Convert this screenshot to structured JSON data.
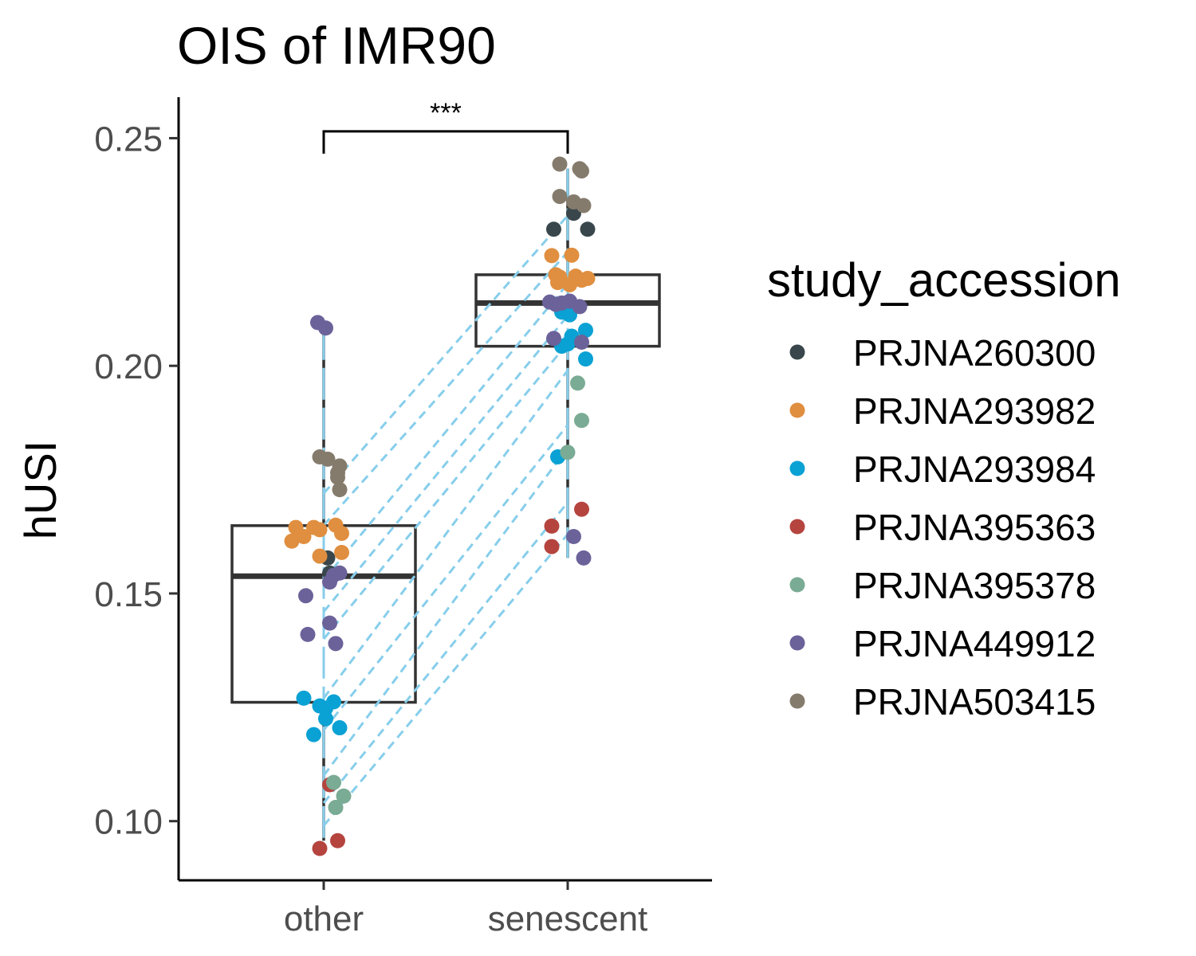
{
  "chart_data": {
    "type": "box",
    "title": "OIS of IMR90",
    "xlabel": "",
    "ylabel": "hUSI",
    "categories": [
      "other",
      "senescent"
    ],
    "ylim": [
      0.087,
      0.259
    ],
    "yticks": [
      {
        "value": 0.1,
        "label": "0.10"
      },
      {
        "value": 0.15,
        "label": "0.15"
      },
      {
        "value": 0.2,
        "label": "0.20"
      },
      {
        "value": 0.25,
        "label": "0.25"
      }
    ],
    "significance": {
      "label": "***",
      "between": [
        "other",
        "senescent"
      ],
      "y": 0.2515
    },
    "boxes": [
      {
        "category": "other",
        "q1": 0.1261,
        "median": 0.1538,
        "q3": 0.1649,
        "whisker_low": 0.0957,
        "whisker_high": 0.2083
      },
      {
        "category": "senescent",
        "q1": 0.2043,
        "median": 0.2138,
        "q3": 0.22,
        "whisker_low": 0.1578,
        "whisker_high": 0.2433
      }
    ],
    "legend": {
      "title": "study_accession",
      "position": "right",
      "entries": [
        {
          "name": "PRJNA260300",
          "color": "#39474c"
        },
        {
          "name": "PRJNA293982",
          "color": "#e08e3f"
        },
        {
          "name": "PRJNA293984",
          "color": "#0aa1d4"
        },
        {
          "name": "PRJNA395363",
          "color": "#b5443f"
        },
        {
          "name": "PRJNA395378",
          "color": "#7aab94"
        },
        {
          "name": "PRJNA449912",
          "color": "#6b629a"
        },
        {
          "name": "PRJNA503415",
          "color": "#857b6d"
        }
      ]
    },
    "pair_line_color": "#87ceeb",
    "paired_lines": [
      {
        "other": 0.172,
        "senescent": 0.233
      },
      {
        "other": 0.165,
        "senescent": 0.225
      },
      {
        "other": 0.153,
        "senescent": 0.218
      },
      {
        "other": 0.146,
        "senescent": 0.211
      },
      {
        "other": 0.14,
        "senescent": 0.205
      },
      {
        "other": 0.127,
        "senescent": 0.199
      },
      {
        "other": 0.12,
        "senescent": 0.187
      },
      {
        "other": 0.11,
        "senescent": 0.182
      },
      {
        "other": 0.104,
        "senescent": 0.17
      },
      {
        "other": 0.099,
        "senescent": 0.163
      }
    ],
    "points": [
      {
        "category": "other",
        "study": "PRJNA260300",
        "y": 0.1578,
        "jitter": 0.02
      },
      {
        "category": "other",
        "study": "PRJNA260300",
        "y": 0.1545,
        "jitter": 0.03
      },
      {
        "category": "other",
        "study": "PRJNA293982",
        "y": 0.1645,
        "jitter": -0.14
      },
      {
        "category": "other",
        "study": "PRJNA293982",
        "y": 0.1645,
        "jitter": -0.05
      },
      {
        "category": "other",
        "study": "PRJNA293982",
        "y": 0.164,
        "jitter": -0.02
      },
      {
        "category": "other",
        "study": "PRJNA293982",
        "y": 0.165,
        "jitter": 0.06
      },
      {
        "category": "other",
        "study": "PRJNA293982",
        "y": 0.1632,
        "jitter": 0.09
      },
      {
        "category": "other",
        "study": "PRJNA293982",
        "y": 0.1615,
        "jitter": -0.16
      },
      {
        "category": "other",
        "study": "PRJNA293982",
        "y": 0.1625,
        "jitter": -0.1
      },
      {
        "category": "other",
        "study": "PRJNA293982",
        "y": 0.159,
        "jitter": 0.09
      },
      {
        "category": "other",
        "study": "PRJNA293982",
        "y": 0.1582,
        "jitter": -0.02
      },
      {
        "category": "other",
        "study": "PRJNA293984",
        "y": 0.127,
        "jitter": -0.1
      },
      {
        "category": "other",
        "study": "PRJNA293984",
        "y": 0.1253,
        "jitter": -0.02
      },
      {
        "category": "other",
        "study": "PRJNA293984",
        "y": 0.1262,
        "jitter": 0.05
      },
      {
        "category": "other",
        "study": "PRJNA293984",
        "y": 0.1248,
        "jitter": 0.01
      },
      {
        "category": "other",
        "study": "PRJNA293984",
        "y": 0.1225,
        "jitter": 0.01
      },
      {
        "category": "other",
        "study": "PRJNA293984",
        "y": 0.1205,
        "jitter": 0.08
      },
      {
        "category": "other",
        "study": "PRJNA293984",
        "y": 0.119,
        "jitter": -0.05
      },
      {
        "category": "other",
        "study": "PRJNA395363",
        "y": 0.108,
        "jitter": 0.03
      },
      {
        "category": "other",
        "study": "PRJNA395363",
        "y": 0.0957,
        "jitter": 0.07
      },
      {
        "category": "other",
        "study": "PRJNA395363",
        "y": 0.094,
        "jitter": -0.02
      },
      {
        "category": "other",
        "study": "PRJNA395378",
        "y": 0.1085,
        "jitter": 0.05
      },
      {
        "category": "other",
        "study": "PRJNA395378",
        "y": 0.1055,
        "jitter": 0.1
      },
      {
        "category": "other",
        "study": "PRJNA395378",
        "y": 0.103,
        "jitter": 0.06
      },
      {
        "category": "other",
        "study": "PRJNA449912",
        "y": 0.2095,
        "jitter": -0.03
      },
      {
        "category": "other",
        "study": "PRJNA449912",
        "y": 0.2083,
        "jitter": 0.01
      },
      {
        "category": "other",
        "study": "PRJNA449912",
        "y": 0.1545,
        "jitter": 0.08
      },
      {
        "category": "other",
        "study": "PRJNA449912",
        "y": 0.154,
        "jitter": 0.05
      },
      {
        "category": "other",
        "study": "PRJNA449912",
        "y": 0.1525,
        "jitter": 0.03
      },
      {
        "category": "other",
        "study": "PRJNA449912",
        "y": 0.1495,
        "jitter": -0.09
      },
      {
        "category": "other",
        "study": "PRJNA449912",
        "y": 0.1435,
        "jitter": 0.03
      },
      {
        "category": "other",
        "study": "PRJNA449912",
        "y": 0.141,
        "jitter": -0.08
      },
      {
        "category": "other",
        "study": "PRJNA449912",
        "y": 0.139,
        "jitter": 0.06
      },
      {
        "category": "other",
        "study": "PRJNA503415",
        "y": 0.18,
        "jitter": -0.02
      },
      {
        "category": "other",
        "study": "PRJNA503415",
        "y": 0.1795,
        "jitter": 0.02
      },
      {
        "category": "other",
        "study": "PRJNA503415",
        "y": 0.178,
        "jitter": 0.08
      },
      {
        "category": "other",
        "study": "PRJNA503415",
        "y": 0.1765,
        "jitter": 0.07
      },
      {
        "category": "other",
        "study": "PRJNA503415",
        "y": 0.1755,
        "jitter": 0.07
      },
      {
        "category": "other",
        "study": "PRJNA503415",
        "y": 0.1728,
        "jitter": 0.08
      },
      {
        "category": "senescent",
        "study": "PRJNA260300",
        "y": 0.2335,
        "jitter": 0.03
      },
      {
        "category": "senescent",
        "study": "PRJNA260300",
        "y": 0.23,
        "jitter": -0.07
      },
      {
        "category": "senescent",
        "study": "PRJNA260300",
        "y": 0.23,
        "jitter": 0.1
      },
      {
        "category": "senescent",
        "study": "PRJNA293982",
        "y": 0.2242,
        "jitter": -0.08
      },
      {
        "category": "senescent",
        "study": "PRJNA293982",
        "y": 0.2243,
        "jitter": 0.02
      },
      {
        "category": "senescent",
        "study": "PRJNA293982",
        "y": 0.22,
        "jitter": -0.06
      },
      {
        "category": "senescent",
        "study": "PRJNA293982",
        "y": 0.2195,
        "jitter": -0.04
      },
      {
        "category": "senescent",
        "study": "PRJNA293982",
        "y": 0.2197,
        "jitter": 0.04
      },
      {
        "category": "senescent",
        "study": "PRJNA293982",
        "y": 0.2192,
        "jitter": 0.1
      },
      {
        "category": "senescent",
        "study": "PRJNA293982",
        "y": 0.2188,
        "jitter": 0.07
      },
      {
        "category": "senescent",
        "study": "PRJNA293982",
        "y": 0.2183,
        "jitter": -0.05
      },
      {
        "category": "senescent",
        "study": "PRJNA293982",
        "y": 0.2178,
        "jitter": 0.01
      },
      {
        "category": "senescent",
        "study": "PRJNA293984",
        "y": 0.2118,
        "jitter": -0.03
      },
      {
        "category": "senescent",
        "study": "PRJNA293984",
        "y": 0.2112,
        "jitter": 0.01
      },
      {
        "category": "senescent",
        "study": "PRJNA293984",
        "y": 0.2078,
        "jitter": 0.09
      },
      {
        "category": "senescent",
        "study": "PRJNA293984",
        "y": 0.2065,
        "jitter": 0.02
      },
      {
        "category": "senescent",
        "study": "PRJNA293984",
        "y": 0.2043,
        "jitter": -0.03
      },
      {
        "category": "senescent",
        "study": "PRJNA293984",
        "y": 0.2048,
        "jitter": 0.0
      },
      {
        "category": "senescent",
        "study": "PRJNA293984",
        "y": 0.2015,
        "jitter": 0.09
      },
      {
        "category": "senescent",
        "study": "PRJNA293984",
        "y": 0.18,
        "jitter": -0.05
      },
      {
        "category": "senescent",
        "study": "PRJNA395363",
        "y": 0.1685,
        "jitter": 0.07
      },
      {
        "category": "senescent",
        "study": "PRJNA395363",
        "y": 0.1648,
        "jitter": -0.08
      },
      {
        "category": "senescent",
        "study": "PRJNA395363",
        "y": 0.1603,
        "jitter": -0.08
      },
      {
        "category": "senescent",
        "study": "PRJNA395378",
        "y": 0.1962,
        "jitter": 0.05
      },
      {
        "category": "senescent",
        "study": "PRJNA395378",
        "y": 0.188,
        "jitter": 0.07
      },
      {
        "category": "senescent",
        "study": "PRJNA395378",
        "y": 0.181,
        "jitter": -0.0
      },
      {
        "category": "senescent",
        "study": "PRJNA449912",
        "y": 0.214,
        "jitter": -0.09
      },
      {
        "category": "senescent",
        "study": "PRJNA449912",
        "y": 0.2135,
        "jitter": -0.06
      },
      {
        "category": "senescent",
        "study": "PRJNA449912",
        "y": 0.2138,
        "jitter": -0.03
      },
      {
        "category": "senescent",
        "study": "PRJNA449912",
        "y": 0.213,
        "jitter": 0.06
      },
      {
        "category": "senescent",
        "study": "PRJNA449912",
        "y": 0.2142,
        "jitter": 0.01
      },
      {
        "category": "senescent",
        "study": "PRJNA449912",
        "y": 0.206,
        "jitter": -0.07
      },
      {
        "category": "senescent",
        "study": "PRJNA449912",
        "y": 0.2052,
        "jitter": 0.07
      },
      {
        "category": "senescent",
        "study": "PRJNA449912",
        "y": 0.1625,
        "jitter": 0.03
      },
      {
        "category": "senescent",
        "study": "PRJNA449912",
        "y": 0.1578,
        "jitter": 0.08
      },
      {
        "category": "senescent",
        "study": "PRJNA503415",
        "y": 0.2443,
        "jitter": -0.04
      },
      {
        "category": "senescent",
        "study": "PRJNA503415",
        "y": 0.2433,
        "jitter": 0.06
      },
      {
        "category": "senescent",
        "study": "PRJNA503415",
        "y": 0.2428,
        "jitter": 0.07
      },
      {
        "category": "senescent",
        "study": "PRJNA503415",
        "y": 0.2372,
        "jitter": -0.04
      },
      {
        "category": "senescent",
        "study": "PRJNA503415",
        "y": 0.236,
        "jitter": 0.03
      },
      {
        "category": "senescent",
        "study": "PRJNA503415",
        "y": 0.2352,
        "jitter": 0.08
      }
    ]
  }
}
